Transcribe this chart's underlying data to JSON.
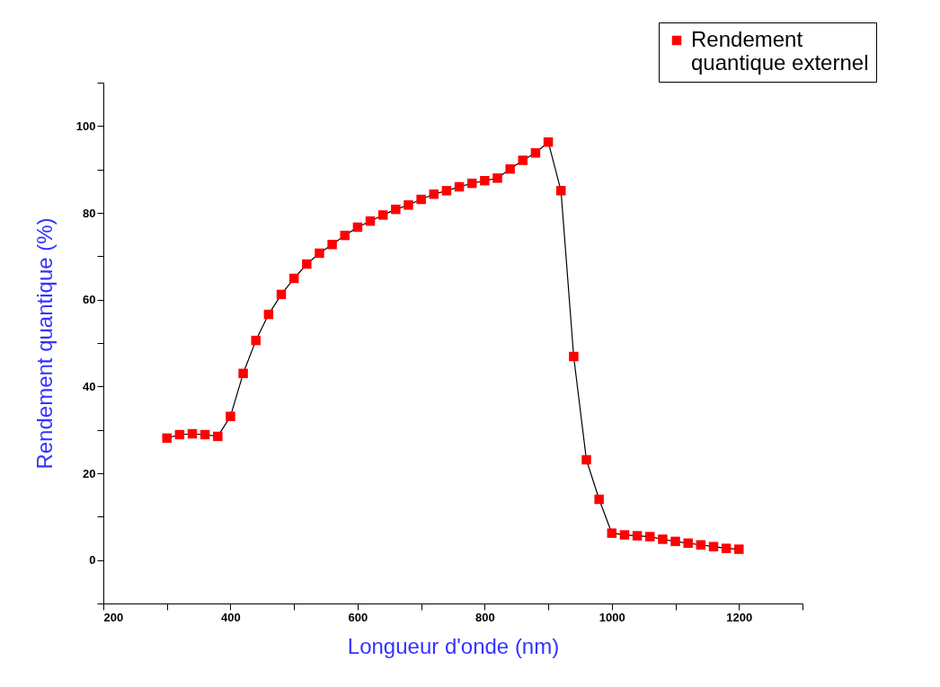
{
  "chart_data": {
    "type": "line",
    "xlabel": "Longueur d'onde (nm)",
    "ylabel": "Rendement quantique (%)",
    "x": [
      300,
      320,
      340,
      360,
      380,
      400,
      420,
      440,
      460,
      480,
      500,
      520,
      540,
      560,
      580,
      600,
      620,
      640,
      660,
      680,
      700,
      720,
      740,
      760,
      780,
      800,
      820,
      840,
      860,
      880,
      900,
      920,
      940,
      960,
      980,
      1000,
      1020,
      1040,
      1060,
      1080,
      1100,
      1120,
      1140,
      1160,
      1180,
      1200
    ],
    "series": [
      {
        "name": "Rendement quantique externel",
        "color": "#ff0000",
        "values": [
          28.1,
          28.9,
          29.1,
          28.9,
          28.5,
          33.1,
          43.0,
          50.6,
          56.6,
          61.2,
          64.9,
          68.2,
          70.7,
          72.7,
          74.8,
          76.7,
          78.1,
          79.5,
          80.8,
          81.8,
          83.1,
          84.3,
          85.1,
          86.0,
          86.8,
          87.4,
          88.0,
          90.1,
          92.1,
          93.8,
          96.3,
          85.1,
          46.9,
          23.1,
          14.0,
          6.2,
          5.8,
          5.6,
          5.4,
          4.8,
          4.3,
          3.9,
          3.5,
          3.1,
          2.7,
          2.5
        ]
      }
    ],
    "xlim": [
      200,
      1300
    ],
    "xticks": [
      200,
      {
        "value": 300,
        "label": null
      },
      400,
      {
        "value": 500,
        "label": null
      },
      600,
      {
        "value": 700,
        "label": null
      },
      800,
      {
        "value": 900,
        "label": null
      },
      1000,
      {
        "value": 1100,
        "label": null
      },
      1200,
      {
        "value": 1300,
        "label": null
      }
    ],
    "ylim": [
      -10,
      110
    ],
    "yticks": [
      {
        "value": -10,
        "label": null
      },
      0,
      {
        "value": 10,
        "label": null
      },
      20,
      {
        "value": 30,
        "label": null
      },
      40,
      {
        "value": 50,
        "label": null
      },
      60,
      {
        "value": 70,
        "label": null
      },
      80,
      {
        "value": 90,
        "label": null
      },
      100,
      {
        "value": 110,
        "label": null
      }
    ],
    "grid": false,
    "legend": "top right",
    "marker": "square",
    "line_style": "solid"
  }
}
